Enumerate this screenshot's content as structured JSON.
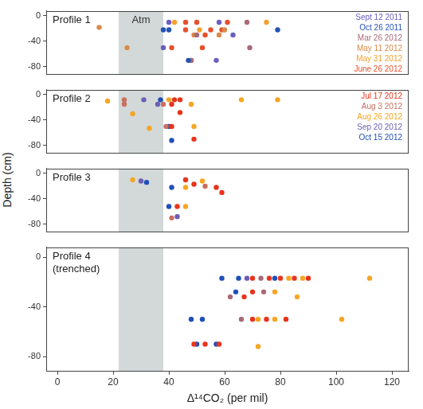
{
  "chart_data": {
    "type": "scatter",
    "xlabel": "Δ¹⁴CO₂ (per mil)",
    "ylabel": "Depth (cm)",
    "xlim": [
      -4,
      126
    ],
    "xticks": [
      0,
      20,
      40,
      60,
      80,
      100,
      120
    ],
    "band": {
      "label": "Atm",
      "x_range": [
        22,
        38
      ]
    },
    "panels": [
      {
        "title": "Profile 1",
        "ylim": [
          -92,
          8
        ],
        "yticks": [
          0,
          -40,
          -80
        ],
        "legend": "upper right",
        "series": [
          {
            "name": "Sept 12 2011",
            "color": "#6a5fc0",
            "x": [
              40,
              58,
              63,
              38,
              57
            ],
            "values": [
              -10,
              -10,
              -30,
              -50,
              -70
            ]
          },
          {
            "name": "Oct 26 2011",
            "color": "#2352b5",
            "x": [
              38,
              40,
              79,
              47
            ],
            "values": [
              -22,
              -22,
              -22,
              -70
            ]
          },
          {
            "name": "Mar 26 2012",
            "color": "#a86a78",
            "x": [
              68,
              50,
              69,
              48
            ],
            "values": [
              -10,
              -30,
              -50,
              -70
            ]
          },
          {
            "name": "May 11 2012",
            "color": "#d98a4a",
            "x": [
              15,
              25,
              60,
              58,
              49
            ],
            "values": [
              -18,
              -50,
              -22,
              -30,
              -30
            ]
          },
          {
            "name": "May 31 2012",
            "color": "#f5a030",
            "x": [
              75,
              42,
              51
            ],
            "values": [
              -10,
              -10,
              -22
            ]
          },
          {
            "name": "June 26 2012",
            "color": "#e8502a",
            "x": [
              46,
              50,
              61,
              59,
              46,
              55,
              53,
              41,
              52,
              48
            ],
            "values": [
              -10,
              -10,
              -10,
              -22,
              -22,
              -22,
              -30,
              -50,
              -50,
              -70
            ]
          }
        ]
      },
      {
        "title": "Profile 2",
        "ylim": [
          -92,
          8
        ],
        "yticks": [
          0,
          -40,
          -80
        ],
        "legend": "upper right",
        "series": [
          {
            "name": "Jul 17 2012",
            "color": "#e8341c",
            "x": [
              42,
              44,
              41,
              44,
              41,
              49
            ],
            "values": [
              -8,
              -8,
              -15,
              -28,
              -50,
              -70
            ]
          },
          {
            "name": "Aug 3 2012",
            "color": "#c87060",
            "x": [
              24,
              24,
              38,
              39
            ],
            "values": [
              -8,
              -15,
              -15,
              -50
            ]
          },
          {
            "name": "Aug 26 2012",
            "color": "#f5a623",
            "x": [
              18,
              40,
              66,
              79,
              27,
              48,
              33,
              49
            ],
            "values": [
              -10,
              -8,
              -8,
              -8,
              -30,
              -15,
              -53,
              -50
            ]
          },
          {
            "name": "Sep 20 2012",
            "color": "#6a5fb5",
            "x": [
              31,
              36
            ],
            "values": [
              -8,
              -15
            ]
          },
          {
            "name": "Oct 15 2012",
            "color": "#2050b8",
            "x": [
              37,
              40,
              41
            ],
            "values": [
              -8,
              -50,
              -72
            ]
          }
        ]
      },
      {
        "title": "Profile 3",
        "ylim": [
          -92,
          8
        ],
        "yticks": [
          0,
          -40,
          -80
        ],
        "series": [
          {
            "color": "#e8341c",
            "x": [
              46,
              49,
              57,
              59,
              43
            ],
            "values": [
              -10,
              -17,
              -22,
              -30,
              -52
            ]
          },
          {
            "color": "#c87060",
            "x": [
              53,
              41
            ],
            "values": [
              -20,
              -70
            ]
          },
          {
            "color": "#f5a623",
            "x": [
              27,
              52,
              46,
              46
            ],
            "values": [
              -10,
              -12,
              -22,
              -52
            ]
          },
          {
            "color": "#6a5fb5",
            "x": [
              30,
              43
            ],
            "values": [
              -12,
              -68
            ]
          },
          {
            "color": "#2050b8",
            "x": [
              32,
              41,
              40
            ],
            "values": [
              -14,
              -22,
              -52
            ]
          }
        ]
      },
      {
        "title": "Profile 4",
        "subtitle": "(trenched)",
        "ylim": [
          -92,
          8
        ],
        "yticks": [
          0,
          -40,
          -80
        ],
        "series": [
          {
            "color": "#e8341c",
            "x": [
              70,
              76,
              80,
              85,
              90,
              70,
              67,
              70,
              75,
              82,
              49,
              53,
              58
            ],
            "values": [
              -17,
              -17,
              -17,
              -17,
              -17,
              -28,
              -32,
              -50,
              -50,
              -50,
              -70,
              -70,
              -70
            ]
          },
          {
            "color": "#f5a623",
            "x": [
              83,
              88,
              112,
              78,
              86,
              72,
              78,
              102,
              72
            ],
            "values": [
              -17,
              -17,
              -17,
              -28,
              -32,
              -50,
              -50,
              -50,
              -72
            ]
          },
          {
            "color": "#2050b8",
            "x": [
              59,
              65,
              78,
              64,
              48,
              52,
              50,
              57
            ],
            "values": [
              -17,
              -17,
              -17,
              -28,
              -50,
              -50,
              -70,
              -70
            ]
          },
          {
            "color": "#a86a78",
            "x": [
              73,
              74,
              62,
              66
            ],
            "values": [
              -17,
              -28,
              -32,
              -50
            ]
          },
          {
            "color": "#6a5fb5",
            "x": [
              68
            ],
            "values": [
              -17
            ]
          }
        ]
      }
    ]
  }
}
